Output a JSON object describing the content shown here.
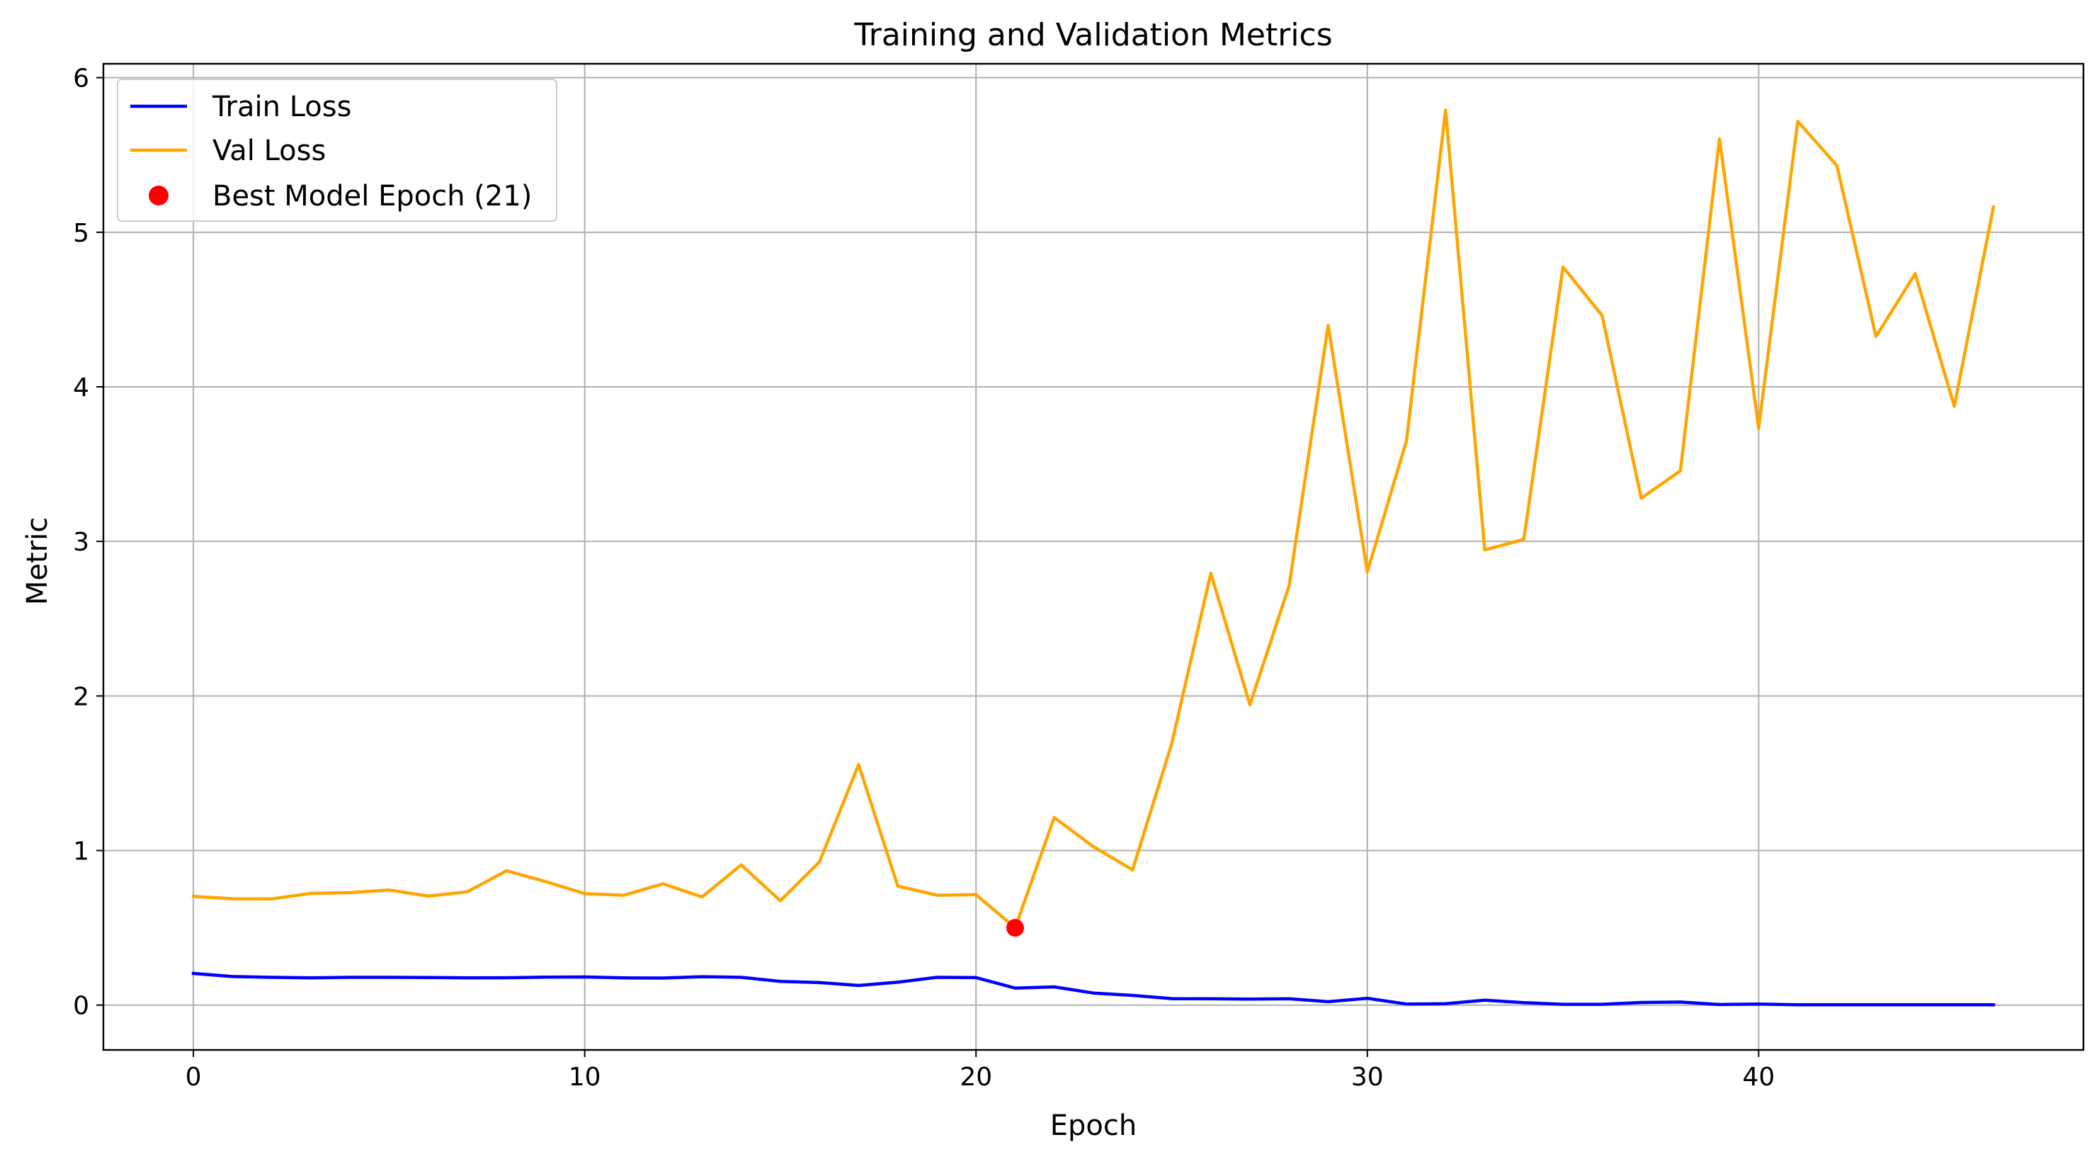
{
  "chart_data": {
    "type": "line",
    "title": "Training and Validation Metrics",
    "xlabel": "Epoch",
    "ylabel": "Metric",
    "xlim": [
      -2.3,
      48.3
    ],
    "ylim": [
      -0.29,
      6.09
    ],
    "xticks": [
      0,
      10,
      20,
      30,
      40
    ],
    "yticks": [
      0,
      1,
      2,
      3,
      4,
      5,
      6
    ],
    "grid": true,
    "legend_position": "upper-left",
    "x": [
      0,
      1,
      2,
      3,
      4,
      5,
      6,
      7,
      8,
      9,
      10,
      11,
      12,
      13,
      14,
      15,
      16,
      17,
      18,
      19,
      20,
      21,
      22,
      23,
      24,
      25,
      26,
      27,
      28,
      29,
      30,
      31,
      32,
      33,
      34,
      35,
      36,
      37,
      38,
      39,
      40,
      41,
      42,
      43,
      44,
      45,
      46
    ],
    "series": [
      {
        "name": "Train Loss",
        "color": "#0000ff",
        "values": [
          0.205,
          0.185,
          0.18,
          0.176,
          0.18,
          0.18,
          0.179,
          0.176,
          0.177,
          0.181,
          0.182,
          0.176,
          0.175,
          0.184,
          0.18,
          0.153,
          0.146,
          0.127,
          0.148,
          0.18,
          0.178,
          0.11,
          0.118,
          0.078,
          0.063,
          0.042,
          0.041,
          0.039,
          0.041,
          0.022,
          0.044,
          0.007,
          0.009,
          0.032,
          0.016,
          0.005,
          0.005,
          0.017,
          0.02,
          0.004,
          0.007,
          0.002,
          0.002,
          0.002,
          0.002,
          0.002,
          0.002
        ]
      },
      {
        "name": "Val Loss",
        "color": "#ffa500",
        "values": [
          0.703,
          0.688,
          0.687,
          0.723,
          0.728,
          0.745,
          0.705,
          0.733,
          0.869,
          0.799,
          0.721,
          0.711,
          0.785,
          0.7,
          0.907,
          0.675,
          0.927,
          1.556,
          0.77,
          0.711,
          0.715,
          0.5,
          1.214,
          1.025,
          0.875,
          1.69,
          2.794,
          1.943,
          2.713,
          4.398,
          2.803,
          3.651,
          5.79,
          2.945,
          3.013,
          4.775,
          4.462,
          3.279,
          3.457,
          5.604,
          3.732,
          5.718,
          5.431,
          4.326,
          4.732,
          3.874,
          5.163
        ]
      }
    ],
    "highlight": {
      "name": "Best Model Epoch (21)",
      "color": "#ff0000",
      "x": 21,
      "y": 0.5
    }
  }
}
